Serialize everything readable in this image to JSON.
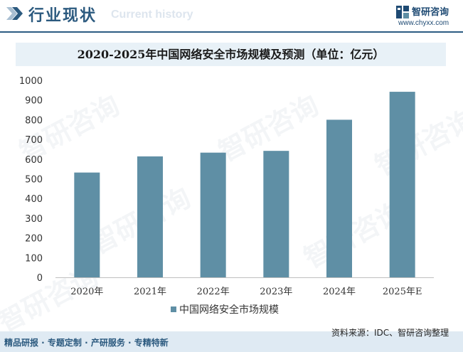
{
  "header": {
    "title": "行业现状",
    "subtitle": "Current history",
    "logo_name": "智研咨询",
    "logo_url": "www.chyxx.com"
  },
  "watermark_text": "智研咨询",
  "chart_data": {
    "type": "bar",
    "title": "2020-2025年中国网络安全市场规模及预测（单位：亿元）",
    "categories": [
      "2020年",
      "2021年",
      "2022年",
      "2023年",
      "2024年",
      "2025年E"
    ],
    "series": [
      {
        "name": "中国网络安全市场规模",
        "values": [
          532,
          614,
          633,
          642,
          800,
          942
        ]
      }
    ],
    "y_ticks": [
      "0",
      "100",
      "200",
      "300",
      "400",
      "500",
      "600",
      "700",
      "800",
      "900",
      "1000"
    ],
    "ylim": [
      0,
      1000
    ],
    "xlabel": "",
    "ylabel": "",
    "bar_color": "#5f8fa5",
    "legend_position": "bottom"
  },
  "footer": {
    "left": "精品研报 · 专题定制 · 产研服务 · 专精特新",
    "right": "资料来源：IDC、智研咨询整理"
  }
}
